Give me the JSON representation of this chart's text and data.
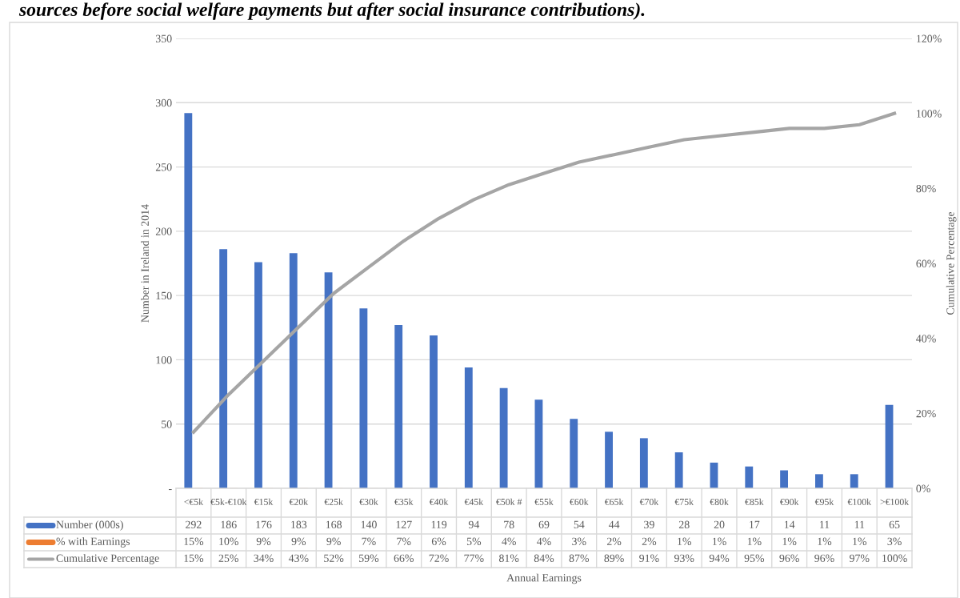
{
  "chart_data": {
    "type": "bar",
    "title": "sources before social welfare payments but after social insurance contributions).",
    "annotations": [
      "Annual Earnings"
    ],
    "ylabel": "Number in Ireland in 2014",
    "y2label": "Cumulative Percentage",
    "categories": [
      "<€5k",
      "€5k-€10k",
      "€15k",
      "€20k",
      "€25k",
      "€30k",
      "€35k",
      "€40k",
      "€45k",
      "€50k #",
      "€55k",
      "€60k",
      "€65k",
      "€70k",
      "€75k",
      "€80k",
      "€85k",
      "€90k",
      "€95k",
      "€100k",
      ">€100k"
    ],
    "series": [
      {
        "name": "Number (000s)",
        "color": "#4472c4",
        "values": [
          292,
          186,
          176,
          183,
          168,
          140,
          127,
          119,
          94,
          78,
          69,
          54,
          44,
          39,
          28,
          20,
          17,
          14,
          11,
          11,
          65
        ]
      },
      {
        "name": "% with Earnings",
        "color": "#ed7d31",
        "values": [
          0.15,
          0.1,
          0.09,
          0.09,
          0.09,
          0.07,
          0.07,
          0.06,
          0.05,
          0.04,
          0.04,
          0.03,
          0.02,
          0.02,
          0.01,
          0.01,
          0.01,
          0.01,
          0.01,
          0.01,
          0.03
        ],
        "value_labels": [
          "15%",
          "10%",
          "9%",
          "9%",
          "9%",
          "7%",
          "7%",
          "6%",
          "5%",
          "4%",
          "4%",
          "3%",
          "2%",
          "2%",
          "1%",
          "1%",
          "1%",
          "1%",
          "1%",
          "1%",
          "3%"
        ]
      },
      {
        "name": "Cumulative Percentage",
        "type": "line",
        "axis": "y2",
        "color": "#a5a5a5",
        "values": [
          15,
          25,
          34,
          43,
          52,
          59,
          66,
          72,
          77,
          81,
          84,
          87,
          89,
          91,
          93,
          94,
          95,
          96,
          96,
          97,
          100
        ],
        "value_labels": [
          "15%",
          "25%",
          "34%",
          "43%",
          "52%",
          "59%",
          "66%",
          "72%",
          "77%",
          "81%",
          "84%",
          "87%",
          "89%",
          "91%",
          "93%",
          "94%",
          "95%",
          "96%",
          "96%",
          "97%",
          "100%"
        ]
      }
    ],
    "ylim": [
      0,
      350
    ],
    "yticks": [
      {
        "value": 0,
        "label": "-"
      },
      50,
      100,
      150,
      200,
      250,
      300,
      350
    ],
    "y2lim": [
      0,
      120
    ],
    "y2ticks": [
      {
        "value": 0,
        "label": "0%"
      },
      {
        "value": 20,
        "label": "20%"
      },
      {
        "value": 40,
        "label": "40%"
      },
      {
        "value": 60,
        "label": "60%"
      },
      {
        "value": 80,
        "label": "80%"
      },
      {
        "value": 100,
        "label": "100%"
      },
      {
        "value": 120,
        "label": "120%"
      }
    ],
    "grid": "y",
    "legend": "bottom left",
    "data_labels": true,
    "marker": "none",
    "line_style": "solid"
  }
}
